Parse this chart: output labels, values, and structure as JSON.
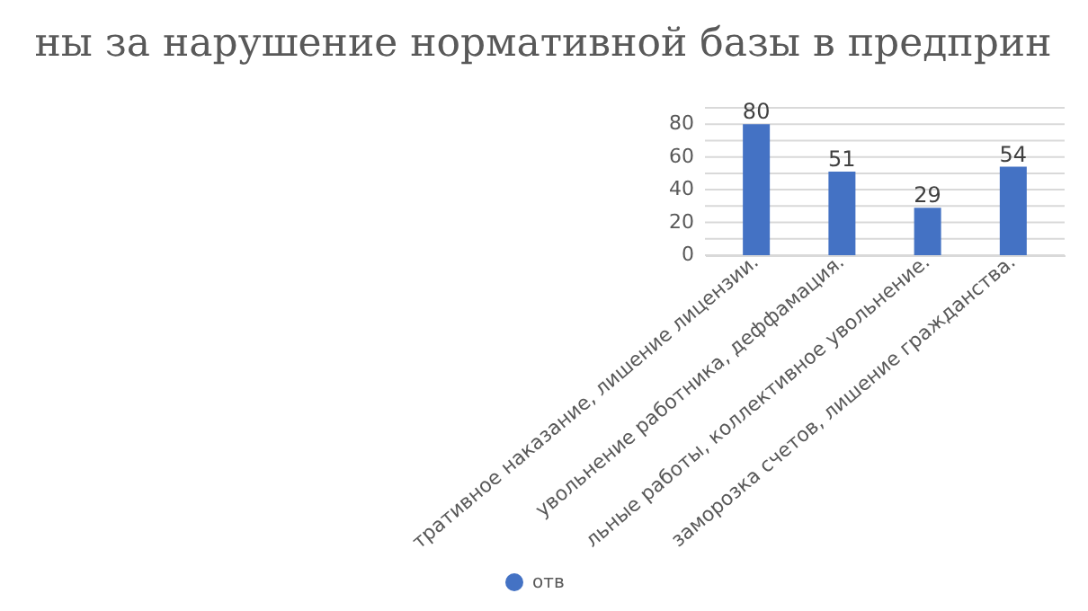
{
  "chart_data": {
    "type": "bar",
    "title": "ны за нарушение нормативной базы в предприн",
    "categories": [
      "тративное наказание, лишение лицензии.",
      "увольнение работника, деффамация.",
      "льные работы, коллективное увольнение.",
      "заморозка счетов, лишение гражданства."
    ],
    "series": [
      {
        "name": "отв",
        "color": "#4472c4",
        "values": [
          80,
          51,
          29,
          54
        ]
      }
    ],
    "ylim": [
      0,
      90
    ],
    "yticks": [
      0,
      {
        "value": 10,
        "label": null
      },
      20,
      {
        "value": 30,
        "label": null
      },
      40,
      {
        "value": 50,
        "label": null
      },
      60,
      {
        "value": 70,
        "label": null
      },
      80,
      {
        "value": 90,
        "label": null
      }
    ],
    "grid": true,
    "data_labels": true,
    "legend": "bottom"
  }
}
